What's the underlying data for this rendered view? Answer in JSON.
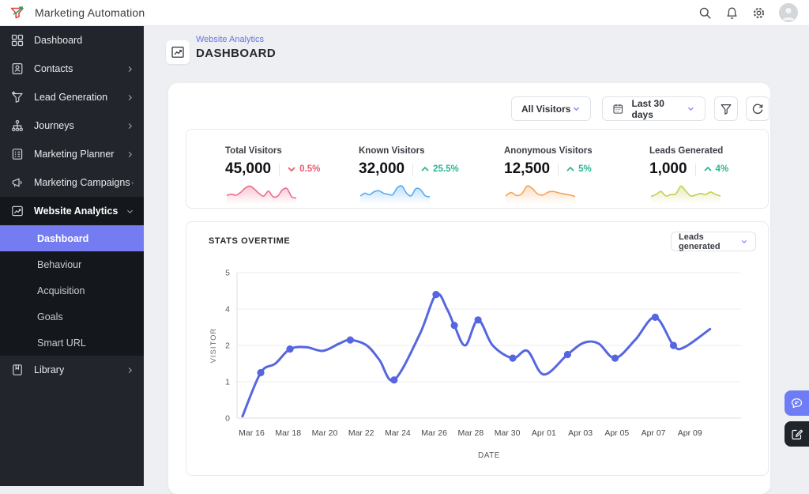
{
  "topbar": {
    "app_title": "Marketing Automation"
  },
  "sidebar": {
    "items_top": [
      {
        "label": "Dashboard",
        "icon": "grid-icon",
        "chevron": false
      },
      {
        "label": "Contacts",
        "icon": "contacts-icon",
        "chevron": true
      },
      {
        "label": "Lead Generation",
        "icon": "lead-funnel-icon",
        "chevron": true
      },
      {
        "label": "Journeys",
        "icon": "journeys-icon",
        "chevron": true
      },
      {
        "label": "Marketing Planner",
        "icon": "planner-icon",
        "chevron": true
      },
      {
        "label": "Marketing Campaigns",
        "icon": "megaphone-icon",
        "chevron": true
      }
    ],
    "analytics_group": {
      "label": "Website Analytics",
      "expanded": true,
      "children": [
        {
          "label": "Dashboard",
          "active": true
        },
        {
          "label": "Behaviour",
          "active": false
        },
        {
          "label": "Acquisition",
          "active": false
        },
        {
          "label": "Goals",
          "active": false
        },
        {
          "label": "Smart URL",
          "active": false
        }
      ]
    },
    "items_bottom": [
      {
        "label": "Library",
        "icon": "library-icon",
        "chevron": true
      }
    ]
  },
  "header": {
    "breadcrumb": "Website Analytics",
    "title": "DASHBOARD"
  },
  "filters": {
    "visitor_select": "All Visitors",
    "date_select": "Last 30 days"
  },
  "stats": [
    {
      "label": "Total Visitors",
      "value": "45,000",
      "change": "0.5%",
      "direction": "down",
      "change_color": "#f0586e",
      "spark_color": "#ef6a8e",
      "spark": [
        2.2,
        2.6,
        2.3,
        3.2,
        4.6,
        5.2,
        4.2,
        2.8,
        2.0,
        3.6,
        1.8,
        2.0,
        4.0,
        4.4,
        1.8,
        1.4
      ]
    },
    {
      "label": "Known Visitors",
      "value": "32,000",
      "change": "25.5%",
      "direction": "up",
      "change_color": "#2bb491",
      "spark_color": "#58abf0",
      "spark": [
        2.5,
        3.6,
        3.0,
        4.2,
        4.6,
        3.6,
        3.2,
        3.0,
        5.8,
        6.4,
        3.6,
        2.6,
        5.4,
        5.0,
        2.6,
        2.2
      ]
    },
    {
      "label": "Anonymous Visitors",
      "value": "12,500",
      "change": "5%",
      "direction": "up",
      "change_color": "#2bb491",
      "spark_color": "#f2a45c",
      "spark": [
        2.6,
        4.0,
        2.8,
        3.4,
        6.6,
        5.6,
        3.4,
        3.0,
        4.2,
        4.4,
        3.8,
        3.4,
        3.0,
        2.4
      ]
    },
    {
      "label": "Leads Generated",
      "value": "1,000",
      "change": "4%",
      "direction": "up",
      "change_color": "#2bb491",
      "spark_color": "#c3cf52",
      "spark": [
        2.4,
        3.2,
        4.4,
        2.6,
        3.2,
        3.4,
        6.6,
        4.6,
        2.6,
        3.0,
        3.6,
        3.2,
        4.2,
        3.2,
        2.6
      ]
    }
  ],
  "stats_overtime": {
    "title": "STATS OVERTIME",
    "metric_select": "Leads generated",
    "chart_data": {
      "type": "line",
      "xlabel": "DATE",
      "ylabel": "VISITOR",
      "line_color": "#5566e0",
      "grid": true,
      "x_range": [
        -0.8,
        26.8
      ],
      "x_tick_positions": [
        0,
        2,
        4,
        6,
        8,
        10,
        12,
        14,
        16,
        18,
        20,
        22,
        24
      ],
      "x_tick_labels": [
        "Mar 16",
        "Mar 18",
        "Mar 20",
        "Mar 22",
        "Mar 24",
        "Mar 26",
        "Mar 28",
        "Mar 30",
        "Apr 01",
        "Apr 03",
        "Apr 05",
        "Apr 07",
        "Apr 09"
      ],
      "y_ticks": [
        0,
        1,
        2,
        4,
        5
      ],
      "points": [
        [
          -0.5,
          0.05,
          0
        ],
        [
          0.5,
          1.25,
          1
        ],
        [
          1.3,
          1.5,
          0
        ],
        [
          2.1,
          1.9,
          1
        ],
        [
          3,
          1.95,
          0
        ],
        [
          3.9,
          1.85,
          0
        ],
        [
          4.8,
          2.1,
          0
        ],
        [
          5.4,
          2.3,
          1
        ],
        [
          6.3,
          2.0,
          0
        ],
        [
          7,
          1.6,
          0
        ],
        [
          7.8,
          1.05,
          1
        ],
        [
          9.2,
          2.6,
          0
        ],
        [
          10.1,
          4.4,
          1
        ],
        [
          10.7,
          4.0,
          0
        ],
        [
          11.1,
          3.1,
          1
        ],
        [
          11.7,
          2.0,
          0
        ],
        [
          12.4,
          3.4,
          1
        ],
        [
          13.2,
          2.0,
          0
        ],
        [
          14.3,
          1.65,
          1
        ],
        [
          15.1,
          1.85,
          0
        ],
        [
          16,
          1.2,
          0
        ],
        [
          17.3,
          1.75,
          1
        ],
        [
          18.2,
          2.15,
          0
        ],
        [
          19,
          2.1,
          0
        ],
        [
          19.9,
          1.65,
          1
        ],
        [
          21,
          2.3,
          0
        ],
        [
          22.1,
          3.55,
          1
        ],
        [
          23.1,
          2.0,
          1
        ],
        [
          23.7,
          1.95,
          0
        ],
        [
          25.1,
          2.9,
          0
        ]
      ]
    }
  }
}
